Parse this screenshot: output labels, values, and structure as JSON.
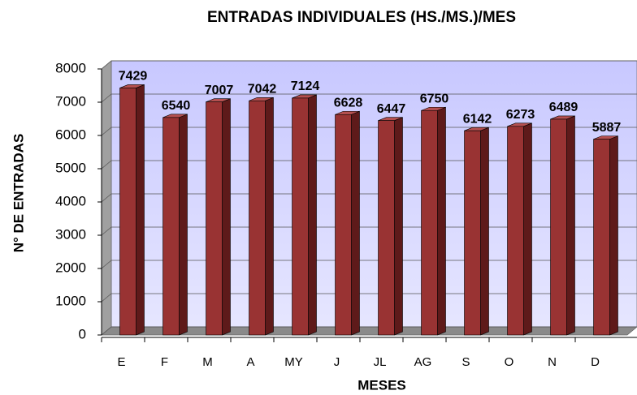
{
  "chart_data": {
    "type": "bar",
    "title": "ENTRADAS INDIVIDUALES (HS./MS.)/MES",
    "x_label": "MESES",
    "y_label": "N° DE ENTRADAS",
    "categories": [
      "E",
      "F",
      "M",
      "A",
      "MY",
      "J",
      "JL",
      "AG",
      "S",
      "O",
      "N",
      "D"
    ],
    "values": [
      7429,
      6540,
      7007,
      7042,
      7124,
      6628,
      6447,
      6750,
      6142,
      6273,
      6489,
      5887
    ],
    "color": "#993333",
    "ylim": [
      0,
      8000
    ],
    "yticks": [
      0,
      1000,
      2000,
      3000,
      4000,
      5000,
      6000,
      7000,
      8000
    ],
    "grid": true
  }
}
